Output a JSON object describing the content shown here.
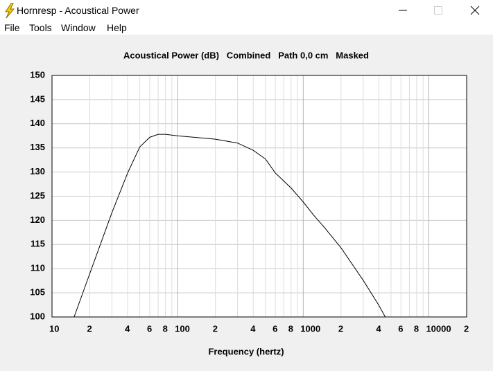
{
  "window": {
    "title": "Hornresp - Acoustical Power"
  },
  "menu": [
    "File",
    "Tools",
    "Window",
    "Help"
  ],
  "chart_data": {
    "type": "line",
    "title": "Acoustical Power (dB)   Combined   Path 0,0 cm   Masked",
    "x_label": "Frequency (hertz)",
    "x": [
      15,
      20,
      30,
      40,
      50,
      60,
      70,
      80,
      100,
      200,
      300,
      400,
      500,
      600,
      800,
      1000,
      1200,
      1500,
      2000,
      3000,
      4000,
      4500
    ],
    "values": [
      100,
      109,
      121.6,
      129.8,
      135.2,
      137.2,
      137.8,
      137.8,
      137.5,
      136.8,
      136,
      134.5,
      132.7,
      129.8,
      126.7,
      123.8,
      121.2,
      118.3,
      114.3,
      107.6,
      102.4,
      100
    ],
    "color": "#000000",
    "x_log": true,
    "xlim": [
      10,
      20000
    ],
    "xticks": [
      10,
      {
        "value": 20,
        "label": "2"
      },
      {
        "value": 40,
        "label": "4"
      },
      {
        "value": 60,
        "label": "6"
      },
      {
        "value": 80,
        "label": "8"
      },
      100,
      {
        "value": 200,
        "label": "2"
      },
      {
        "value": 400,
        "label": "4"
      },
      {
        "value": 600,
        "label": "6"
      },
      {
        "value": 800,
        "label": "8"
      },
      1000,
      {
        "value": 2000,
        "label": "2"
      },
      {
        "value": 4000,
        "label": "4"
      },
      {
        "value": 6000,
        "label": "6"
      },
      {
        "value": 8000,
        "label": "8"
      },
      10000,
      {
        "value": 20000,
        "label": "2"
      }
    ],
    "x_minor_ticks": [
      30,
      50,
      70,
      90,
      300,
      500,
      700,
      900,
      3000,
      5000,
      7000,
      9000
    ],
    "ylim": [
      100,
      150
    ],
    "yticks": [
      100,
      105,
      110,
      115,
      120,
      125,
      130,
      135,
      140,
      145,
      150
    ],
    "grid": true
  }
}
